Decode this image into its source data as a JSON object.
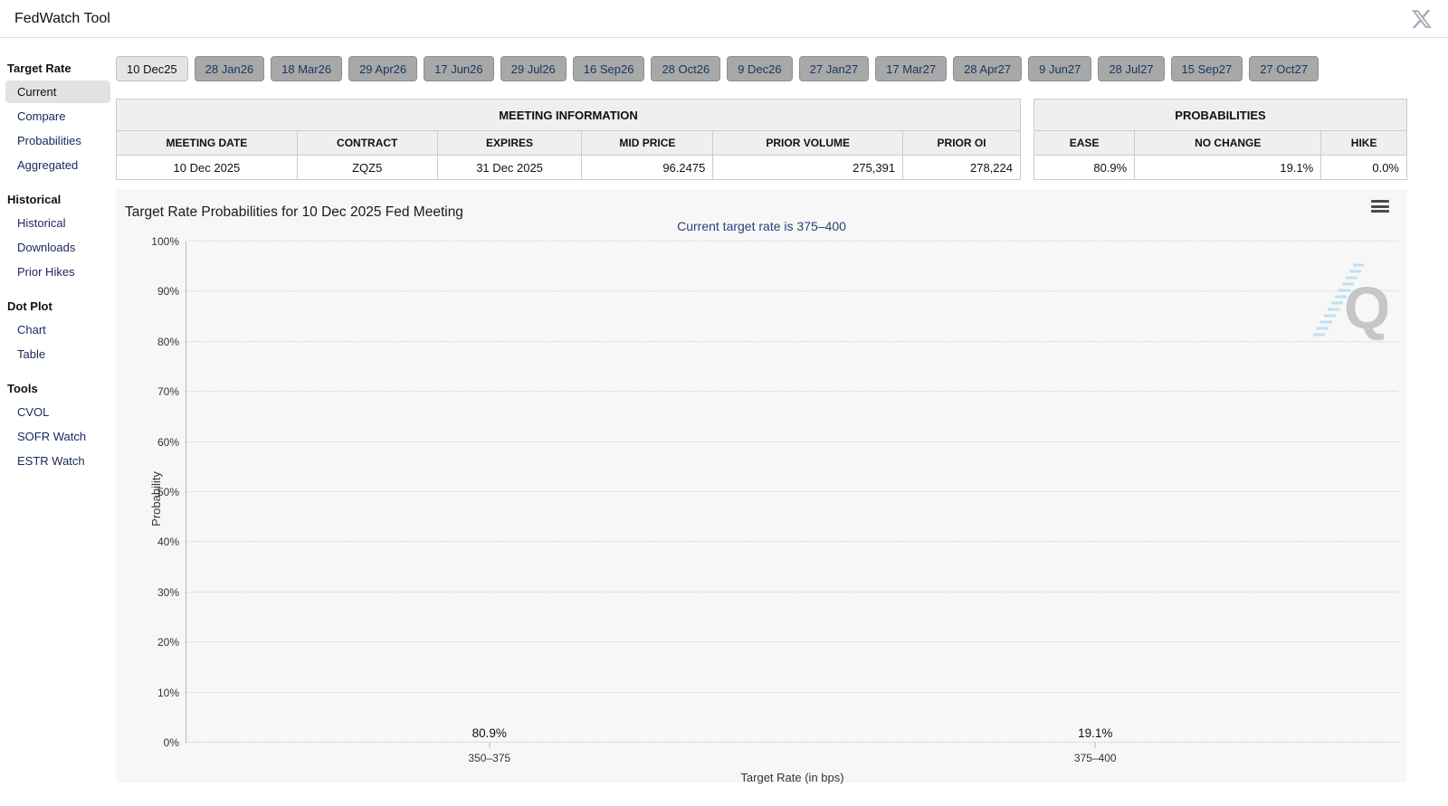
{
  "header": {
    "title": "FedWatch Tool"
  },
  "sidebar": {
    "sections": [
      {
        "label": "Target Rate",
        "items": [
          {
            "label": "Current",
            "selected": true
          },
          {
            "label": "Compare"
          },
          {
            "label": "Probabilities"
          },
          {
            "label": "Aggregated"
          }
        ]
      },
      {
        "label": "Historical",
        "items": [
          {
            "label": "Historical"
          },
          {
            "label": "Downloads"
          },
          {
            "label": "Prior Hikes"
          }
        ]
      },
      {
        "label": "Dot Plot",
        "items": [
          {
            "label": "Chart"
          },
          {
            "label": "Table"
          }
        ]
      },
      {
        "label": "Tools",
        "items": [
          {
            "label": "CVOL"
          },
          {
            "label": "SOFR Watch"
          },
          {
            "label": "ESTR Watch"
          }
        ]
      }
    ]
  },
  "tabs": [
    {
      "label": "10 Dec25",
      "selected": true
    },
    {
      "label": "28 Jan26"
    },
    {
      "label": "18 Mar26"
    },
    {
      "label": "29 Apr26"
    },
    {
      "label": "17 Jun26"
    },
    {
      "label": "29 Jul26"
    },
    {
      "label": "16 Sep26"
    },
    {
      "label": "28 Oct26"
    },
    {
      "label": "9 Dec26"
    },
    {
      "label": "27 Jan27"
    },
    {
      "label": "17 Mar27"
    },
    {
      "label": "28 Apr27"
    },
    {
      "label": "9 Jun27"
    },
    {
      "label": "28 Jul27"
    },
    {
      "label": "15 Sep27"
    },
    {
      "label": "27 Oct27"
    }
  ],
  "meeting_info": {
    "title": "MEETING INFORMATION",
    "columns": [
      "MEETING DATE",
      "CONTRACT",
      "EXPIRES",
      "MID PRICE",
      "PRIOR VOLUME",
      "PRIOR OI"
    ],
    "row": [
      "10 Dec 2025",
      "ZQZ5",
      "31 Dec 2025",
      "96.2475",
      "275,391",
      "278,224"
    ]
  },
  "probabilities": {
    "title": "PROBABILITIES",
    "columns": [
      "EASE",
      "NO CHANGE",
      "HIKE"
    ],
    "row": [
      "80.9%",
      "19.1%",
      "0.0%"
    ]
  },
  "chart_data": {
    "type": "bar",
    "title": "Target Rate Probabilities for 10 Dec 2025 Fed Meeting",
    "subtitle": "Current target rate is 375–400",
    "categories": [
      "350–375",
      "375–400"
    ],
    "values": [
      80.9,
      19.1
    ],
    "value_labels": [
      "80.9%",
      "19.1%"
    ],
    "xlabel": "Target Rate (in bps)",
    "ylabel": "Probability",
    "ylim": [
      0,
      100
    ],
    "ytick_step": 10,
    "bar_color": "#2a7fb8",
    "grid": "horizontal-dotted",
    "legend": "none",
    "watermark_letter": "Q"
  },
  "icons": {
    "x_social": "x-social-logo",
    "menu": "hamburger-menu"
  }
}
